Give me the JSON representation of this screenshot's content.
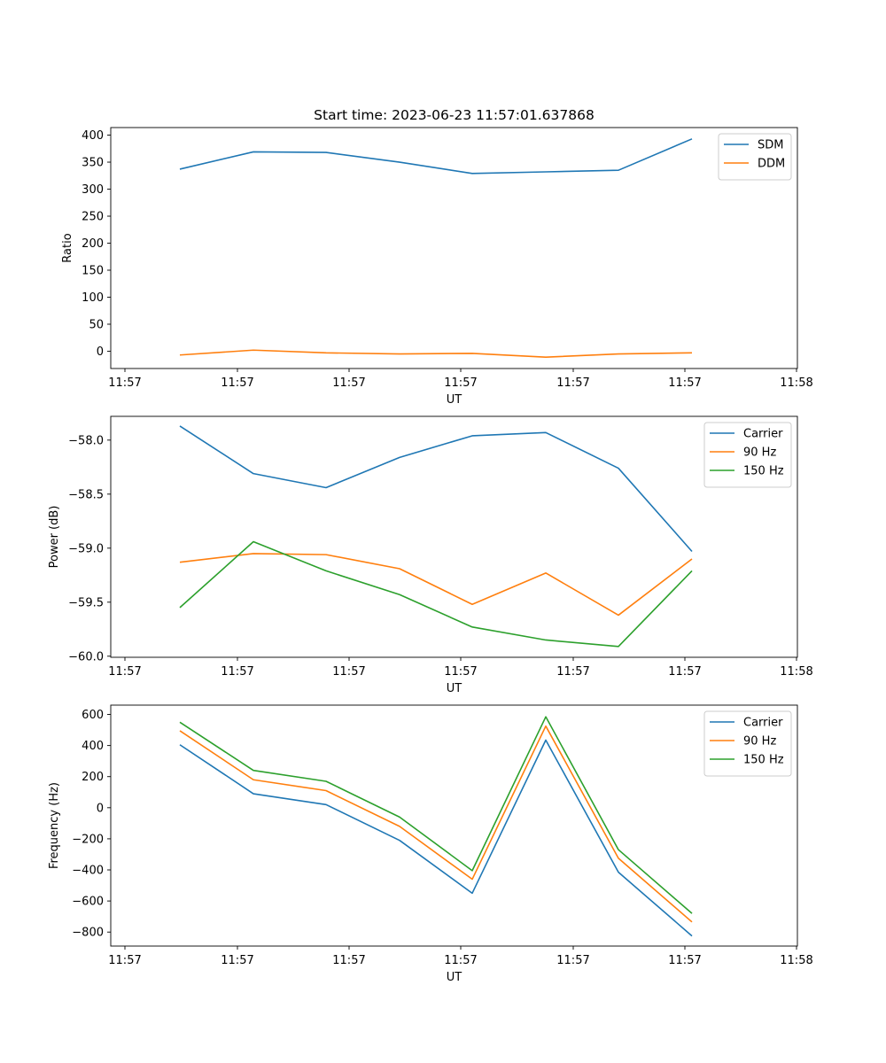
{
  "figure": {
    "title": "Start time: 2023-06-23 11:57:01.637868"
  },
  "chart_data": [
    {
      "type": "line",
      "title": "Start time: 2023-06-23 11:57:01.637868",
      "xlabel": "UT",
      "ylabel": "Ratio",
      "x_tick_labels": [
        "11:57",
        "11:57",
        "11:57",
        "11:57",
        "11:57",
        "11:57",
        "11:58"
      ],
      "y_ticks": [
        0,
        50,
        100,
        150,
        200,
        250,
        300,
        350,
        400
      ],
      "ylim": [
        -32,
        414
      ],
      "grid": false,
      "legend_position": "upper right",
      "series": [
        {
          "name": "SDM",
          "color": "#1f77b4",
          "values": [
            337,
            369,
            368,
            350,
            329,
            332,
            335,
            393
          ]
        },
        {
          "name": "DDM",
          "color": "#ff7f0e",
          "values": [
            -7,
            2,
            -3,
            -5,
            -4,
            -11,
            -5,
            -3
          ]
        }
      ]
    },
    {
      "type": "line",
      "xlabel": "UT",
      "ylabel": "Power (dB)",
      "x_tick_labels": [
        "11:57",
        "11:57",
        "11:57",
        "11:57",
        "11:57",
        "11:57",
        "11:58"
      ],
      "y_ticks": [
        -60.0,
        -59.5,
        -59.0,
        -58.5,
        -58.0
      ],
      "y_tick_labels": [
        "−60.0",
        "−59.5",
        "−59.0",
        "−58.5",
        "−58.0"
      ],
      "ylim": [
        -60.01,
        -57.78
      ],
      "grid": false,
      "legend_position": "upper right",
      "series": [
        {
          "name": "Carrier",
          "color": "#1f77b4",
          "values": [
            -57.87,
            -58.31,
            -58.44,
            -58.16,
            -57.96,
            -57.93,
            -58.26,
            -59.03
          ]
        },
        {
          "name": "90 Hz",
          "color": "#ff7f0e",
          "values": [
            -59.13,
            -59.05,
            -59.06,
            -59.19,
            -59.52,
            -59.23,
            -59.62,
            -59.1
          ]
        },
        {
          "name": "150 Hz",
          "color": "#2ca02c",
          "values": [
            -59.55,
            -58.94,
            -59.21,
            -59.43,
            -59.73,
            -59.85,
            -59.91,
            -59.21
          ]
        }
      ]
    },
    {
      "type": "line",
      "xlabel": "UT",
      "ylabel": "Frequency (Hz)",
      "x_tick_labels": [
        "11:57",
        "11:57",
        "11:57",
        "11:57",
        "11:57",
        "11:57",
        "11:58"
      ],
      "y_ticks": [
        -800,
        -600,
        -400,
        -200,
        0,
        200,
        400,
        600
      ],
      "y_tick_labels": [
        "−800",
        "−600",
        "−400",
        "−200",
        "0",
        "200",
        "400",
        "600"
      ],
      "ylim": [
        -890,
        660
      ],
      "grid": false,
      "legend_position": "upper right",
      "series": [
        {
          "name": "Carrier",
          "color": "#1f77b4",
          "values": [
            405,
            90,
            20,
            -210,
            -550,
            435,
            -415,
            -825
          ]
        },
        {
          "name": "90 Hz",
          "color": "#ff7f0e",
          "values": [
            495,
            180,
            110,
            -120,
            -460,
            525,
            -325,
            -735
          ]
        },
        {
          "name": "150 Hz",
          "color": "#2ca02c",
          "values": [
            550,
            240,
            170,
            -60,
            -405,
            585,
            -270,
            -680
          ]
        }
      ]
    }
  ]
}
